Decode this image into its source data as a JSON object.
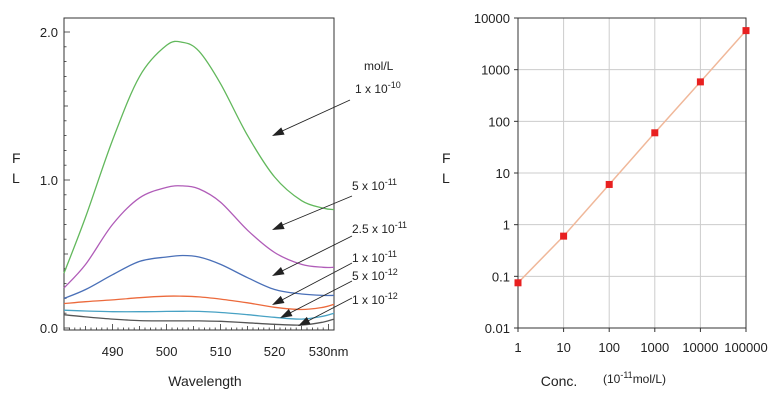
{
  "chart_data": [
    {
      "type": "line",
      "title": "",
      "xlabel": "Wavelength",
      "ylabel": "F L",
      "x_unit": "nm",
      "xlim": [
        481,
        531
      ],
      "ylim": [
        0.0,
        2.0
      ],
      "x_ticks": [
        490,
        500,
        510,
        520,
        530
      ],
      "x_tick_labels": [
        "490",
        "500",
        "510",
        "520",
        "530nm"
      ],
      "y_ticks": [
        0.0,
        1.0,
        2.0
      ],
      "y_tick_labels": [
        "0.0",
        "1.0",
        "2.0"
      ],
      "legend_title": "mol/L",
      "grid": false,
      "series": [
        {
          "name": "1 x 10-10",
          "color": "#62b85c",
          "x": [
            481,
            485,
            490,
            495,
            500,
            503,
            506,
            510,
            515,
            520,
            525,
            529,
            531
          ],
          "y": [
            0.37,
            0.75,
            1.27,
            1.7,
            1.91,
            1.93,
            1.87,
            1.65,
            1.3,
            1.02,
            0.86,
            0.81,
            0.8
          ]
        },
        {
          "name": "5 x 10-11",
          "color": "#b05cb8",
          "x": [
            481,
            485,
            490,
            495,
            500,
            503,
            506,
            510,
            515,
            520,
            525,
            529,
            531
          ],
          "y": [
            0.27,
            0.43,
            0.7,
            0.88,
            0.95,
            0.96,
            0.94,
            0.85,
            0.66,
            0.51,
            0.43,
            0.41,
            0.41
          ]
        },
        {
          "name": "2.5 x 10-11",
          "color": "#4a70b8",
          "x": [
            481,
            485,
            490,
            495,
            500,
            503,
            506,
            510,
            515,
            520,
            525,
            529,
            531
          ],
          "y": [
            0.2,
            0.26,
            0.36,
            0.45,
            0.48,
            0.49,
            0.48,
            0.43,
            0.34,
            0.26,
            0.23,
            0.22,
            0.22
          ]
        },
        {
          "name": "1 x 10-11",
          "color": "#ec6a3c",
          "x": [
            481,
            485,
            490,
            495,
            500,
            503,
            506,
            510,
            515,
            520,
            525,
            529,
            531
          ],
          "y": [
            0.165,
            0.178,
            0.19,
            0.205,
            0.215,
            0.215,
            0.21,
            0.195,
            0.17,
            0.14,
            0.125,
            0.14,
            0.16
          ]
        },
        {
          "name": "5 x 10-12",
          "color": "#48a2c4",
          "x": [
            481,
            485,
            490,
            495,
            500,
            503,
            506,
            510,
            515,
            520,
            525,
            529,
            531
          ],
          "y": [
            0.12,
            0.115,
            0.11,
            0.11,
            0.112,
            0.113,
            0.112,
            0.105,
            0.09,
            0.072,
            0.06,
            0.08,
            0.1
          ]
        },
        {
          "name": "1 x 10-12",
          "color": "#555555",
          "x": [
            481,
            485,
            490,
            495,
            500,
            503,
            506,
            510,
            515,
            520,
            525,
            529,
            531
          ],
          "y": [
            0.09,
            0.075,
            0.06,
            0.05,
            0.048,
            0.048,
            0.048,
            0.045,
            0.035,
            0.025,
            0.02,
            0.04,
            0.06
          ]
        }
      ]
    },
    {
      "type": "scatter",
      "title": "",
      "xlabel": "Conc.",
      "x_unit": "(10-11mol/L)",
      "ylabel": "F L",
      "x_scale": "log",
      "y_scale": "log",
      "xlim": [
        1,
        100000
      ],
      "ylim": [
        0.01,
        10000
      ],
      "x_tick_labels": [
        "1",
        "10",
        "100",
        "1000",
        "10000",
        "100000"
      ],
      "y_tick_labels": [
        "0.01",
        "0.1",
        "1",
        "10",
        "100",
        "1000",
        "10000"
      ],
      "marker_color": "#e82020",
      "line_color": "#f0b89a",
      "grid": true,
      "points": {
        "x": [
          1,
          10,
          100,
          1000,
          10000,
          100000
        ],
        "y": [
          0.075,
          0.6,
          6,
          60,
          580,
          5700
        ]
      }
    }
  ]
}
